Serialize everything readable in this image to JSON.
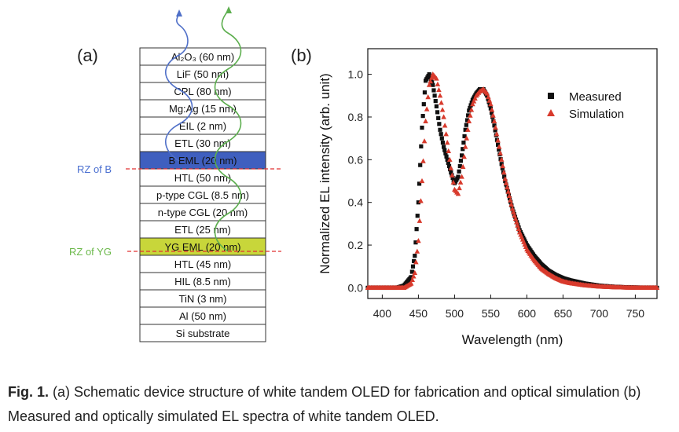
{
  "colors": {
    "blue_layer": "#3f5fbf",
    "yellow_layer": "#c8d63a",
    "rz_blue": "#4a6fd0",
    "rz_green": "#6bb84a",
    "rz_line": "#e03030",
    "wave_blue": "#5070c8",
    "wave_green": "#5cae4e",
    "measured": "#111111",
    "simulation": "#d83a2c"
  },
  "panel_a": {
    "label": "(a)",
    "layers": [
      {
        "text": "Al₂O₃ (60 nm)",
        "fill": "white"
      },
      {
        "text": "LiF (50 nm)",
        "fill": "white"
      },
      {
        "text": "CPL (80 nm)",
        "fill": "white"
      },
      {
        "text": "Mg:Ag (15 nm)",
        "fill": "white"
      },
      {
        "text": "EIL (2 nm)",
        "fill": "white"
      },
      {
        "text": "ETL (30 nm)",
        "fill": "white"
      },
      {
        "text": "B EML (20 nm)",
        "fill": "blue"
      },
      {
        "text": "HTL (50 nm)",
        "fill": "white"
      },
      {
        "text": "p-type CGL (8.5 nm)",
        "fill": "white"
      },
      {
        "text": "n-type CGL (20 nm)",
        "fill": "white"
      },
      {
        "text": "ETL (25 nm)",
        "fill": "white"
      },
      {
        "text": "YG EML (20 nm)",
        "fill": "yellow"
      },
      {
        "text": "HTL (45 nm)",
        "fill": "white"
      },
      {
        "text": "HIL (8.5 nm)",
        "fill": "white"
      },
      {
        "text": "TiN (3 nm)",
        "fill": "white"
      },
      {
        "text": "Al (50 nm)",
        "fill": "white"
      },
      {
        "text": "Si substrate",
        "fill": "white"
      }
    ],
    "rz_b_label": "RZ of B",
    "rz_yg_label": "RZ of YG"
  },
  "chart_data": {
    "type": "scatter",
    "panel_label": "(b)",
    "xlabel": "Wavelength (nm)",
    "ylabel": "Normalized EL intensity (arb. unit)",
    "xlim": [
      380,
      780
    ],
    "ylim": [
      -0.05,
      1.12
    ],
    "x_ticks": [
      400,
      450,
      500,
      550,
      600,
      650,
      700,
      750
    ],
    "y_ticks": [
      0.0,
      0.2,
      0.4,
      0.6,
      0.8,
      1.0
    ],
    "y_tick_labels": [
      "0.0",
      "0.2",
      "0.4",
      "0.6",
      "0.8",
      "1.0"
    ],
    "legend_position": "top-right",
    "series": [
      {
        "name": "Measured",
        "marker": "square",
        "x": [
          380,
          400,
          420,
          430,
          440,
          445,
          450,
          455,
          460,
          465,
          470,
          475,
          480,
          485,
          490,
          495,
          500,
          505,
          510,
          515,
          520,
          525,
          530,
          535,
          540,
          545,
          550,
          555,
          560,
          565,
          570,
          580,
          590,
          600,
          610,
          620,
          630,
          640,
          650,
          660,
          680,
          700,
          720,
          740,
          760,
          780
        ],
        "y": [
          0,
          0,
          0,
          0.01,
          0.05,
          0.15,
          0.4,
          0.75,
          0.97,
          1.0,
          0.95,
          0.85,
          0.74,
          0.66,
          0.6,
          0.54,
          0.49,
          0.52,
          0.62,
          0.74,
          0.83,
          0.88,
          0.91,
          0.93,
          0.93,
          0.9,
          0.84,
          0.76,
          0.67,
          0.58,
          0.5,
          0.37,
          0.27,
          0.2,
          0.15,
          0.11,
          0.08,
          0.06,
          0.045,
          0.035,
          0.02,
          0.01,
          0.005,
          0.002,
          0.001,
          0
        ]
      },
      {
        "name": "Simulation",
        "marker": "triangle",
        "x": [
          380,
          400,
          420,
          430,
          440,
          445,
          450,
          455,
          460,
          465,
          470,
          475,
          480,
          485,
          490,
          495,
          500,
          505,
          510,
          515,
          520,
          525,
          530,
          535,
          540,
          545,
          550,
          555,
          560,
          565,
          570,
          580,
          590,
          600,
          610,
          620,
          630,
          640,
          650,
          660,
          680,
          700,
          720,
          740,
          760,
          780
        ],
        "y": [
          0,
          0,
          0,
          0,
          0.02,
          0.07,
          0.22,
          0.5,
          0.78,
          0.95,
          1.0,
          0.98,
          0.9,
          0.8,
          0.68,
          0.56,
          0.46,
          0.44,
          0.52,
          0.66,
          0.78,
          0.86,
          0.9,
          0.92,
          0.93,
          0.91,
          0.86,
          0.78,
          0.69,
          0.6,
          0.51,
          0.37,
          0.26,
          0.18,
          0.13,
          0.09,
          0.065,
          0.045,
          0.03,
          0.022,
          0.012,
          0.006,
          0.003,
          0.001,
          0,
          0
        ]
      }
    ]
  },
  "caption": {
    "label": "Fig. 1.",
    "text": " (a) Schematic device structure of white tandem OLED for fabrication and optical simulation (b) Measured and optically simulated EL spectra of white tandem OLED."
  }
}
